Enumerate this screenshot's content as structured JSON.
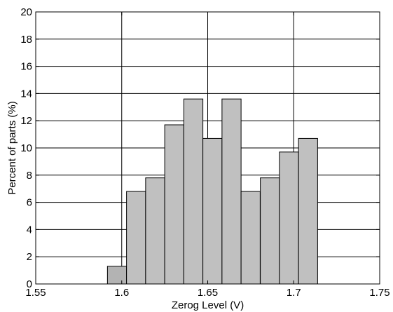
{
  "chart_data": {
    "type": "bar",
    "title": "",
    "xlabel": "Zerog Level (V)",
    "ylabel": "Percent of parts (%)",
    "xlim": [
      1.55,
      1.75
    ],
    "ylim": [
      0,
      20
    ],
    "grid": true,
    "x_ticks": [
      "1.55",
      "1.6",
      "1.65",
      "1.7",
      "1.75"
    ],
    "y_ticks": [
      "0",
      "2",
      "4",
      "6",
      "8",
      "10",
      "12",
      "14",
      "16",
      "18",
      "20"
    ],
    "bin_width": 0.0111,
    "bins": [
      {
        "x": 1.5917,
        "value": 1.3
      },
      {
        "x": 1.6028,
        "value": 6.8
      },
      {
        "x": 1.6139,
        "value": 7.8
      },
      {
        "x": 1.625,
        "value": 11.7
      },
      {
        "x": 1.6361,
        "value": 13.6
      },
      {
        "x": 1.6472,
        "value": 10.7
      },
      {
        "x": 1.6583,
        "value": 13.6
      },
      {
        "x": 1.6694,
        "value": 6.8
      },
      {
        "x": 1.6806,
        "value": 7.8
      },
      {
        "x": 1.6917,
        "value": 9.7
      },
      {
        "x": 1.7028,
        "value": 10.7
      }
    ],
    "colors": {
      "bars": [
        "#b3b3b3",
        "#c0c0c0",
        "#c0c0c0",
        "#c0c0c0",
        "#c0c0c0",
        "#c0c0c0",
        "#c0c0c0",
        "#c0c0c0",
        "#c0c0c0",
        "#c0c0c0",
        "#c0c0c0"
      ],
      "bar_stroke": "#000000",
      "grid": "#000000",
      "axis": "#000000"
    }
  }
}
